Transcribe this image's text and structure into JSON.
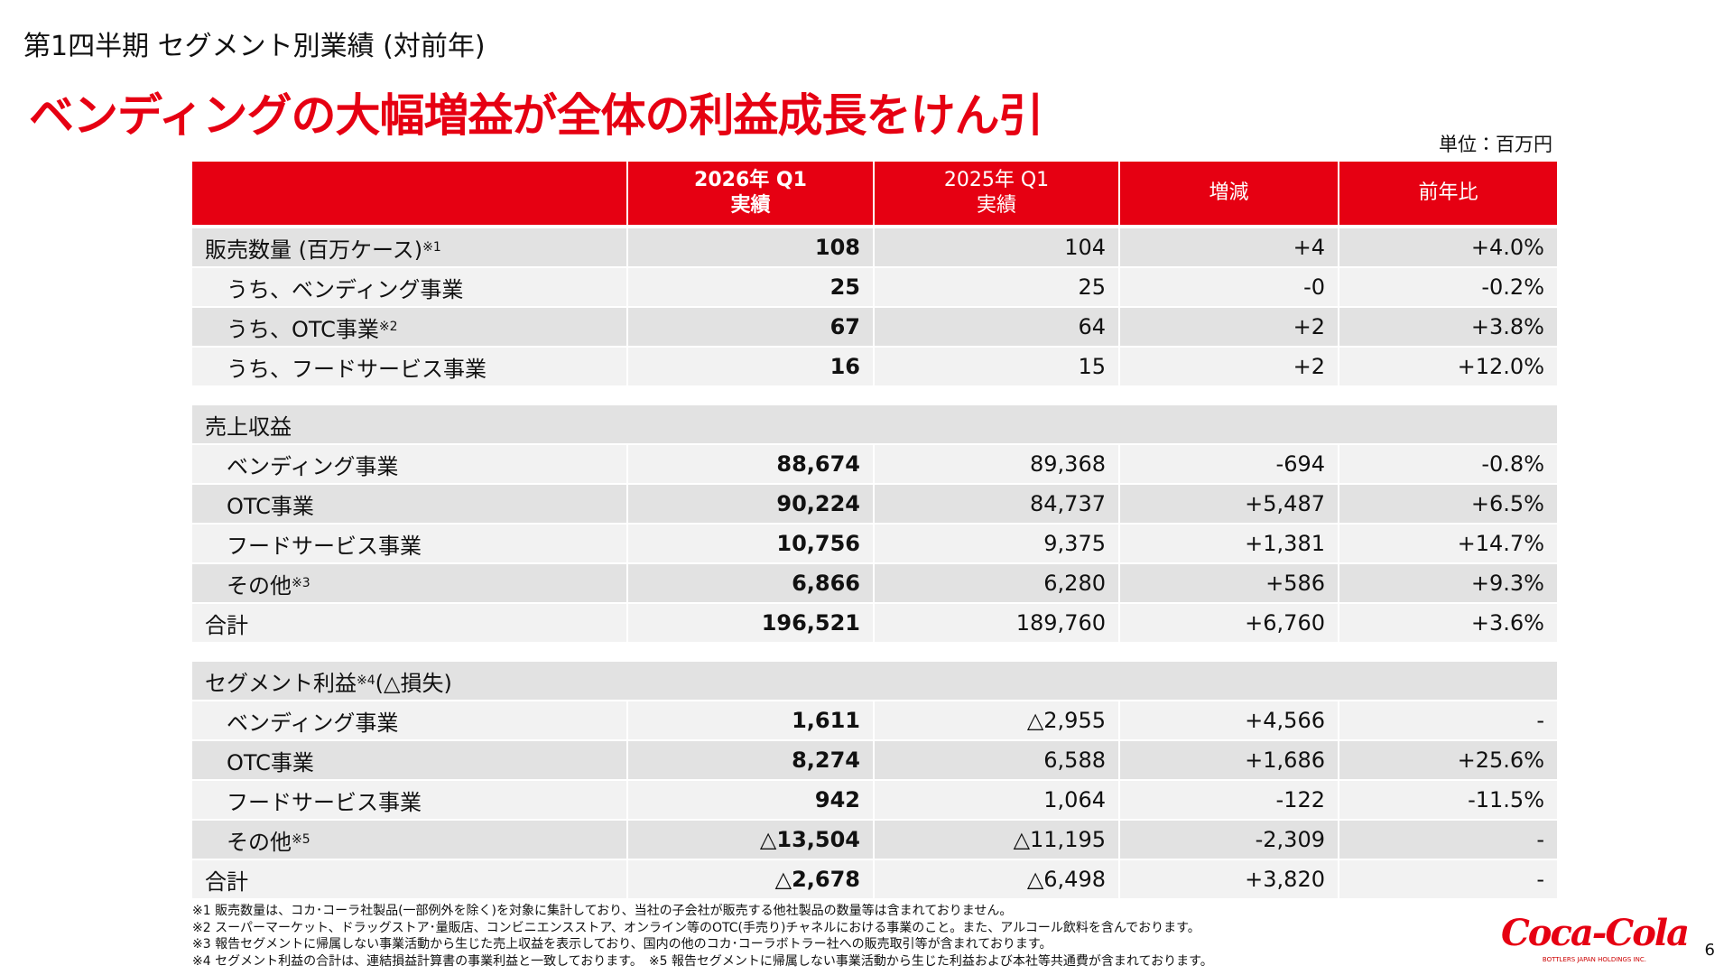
{
  "header": {
    "subtitle": "第1四半期 セグメント別業績 (対前年)",
    "title": "ベンディングの大幅増益が全体の利益成長をけん引",
    "unit": "単位：百万円"
  },
  "table": {
    "columns": [
      [
        "2026年 Q1",
        "実績"
      ],
      [
        "2025年 Q1",
        "実績"
      ],
      [
        "増減"
      ],
      [
        "前年比"
      ]
    ],
    "sections": [
      {
        "rows": [
          {
            "label": "販売数量 (百万ケース)",
            "note": "※1",
            "cells": [
              "108",
              "104",
              "+4",
              "+4.0%"
            ]
          },
          {
            "label": "うち、ベンディング事業",
            "indent": true,
            "cells": [
              "25",
              "25",
              "-0",
              "-0.2%"
            ]
          },
          {
            "label": "うち、OTC事業",
            "note": "※2",
            "indent": true,
            "cells": [
              "67",
              "64",
              "+2",
              "+3.8%"
            ]
          },
          {
            "label": "うち、フードサービス事業",
            "indent": true,
            "cells": [
              "16",
              "15",
              "+2",
              "+12.0%"
            ]
          }
        ]
      },
      {
        "heading": {
          "label": "売上収益"
        },
        "rows": [
          {
            "label": "ベンディング事業",
            "indent": true,
            "cells": [
              "88,674",
              "89,368",
              "-694",
              "-0.8%"
            ]
          },
          {
            "label": "OTC事業",
            "indent": true,
            "cells": [
              "90,224",
              "84,737",
              "+5,487",
              "+6.5%"
            ]
          },
          {
            "label": "フードサービス事業",
            "indent": true,
            "cells": [
              "10,756",
              "9,375",
              "+1,381",
              "+14.7%"
            ]
          },
          {
            "label": "その他",
            "note": "※3",
            "indent": true,
            "cells": [
              "6,866",
              "6,280",
              "+586",
              "+9.3%"
            ]
          },
          {
            "label": "合計",
            "cells": [
              "196,521",
              "189,760",
              "+6,760",
              "+3.6%"
            ]
          }
        ]
      },
      {
        "heading": {
          "label": "セグメント利益",
          "note": "※4",
          "suffix": " (△損失)"
        },
        "rows": [
          {
            "label": "ベンディング事業",
            "indent": true,
            "cells": [
              "1,611",
              "△2,955",
              "+4,566",
              "-"
            ]
          },
          {
            "label": "OTC事業",
            "indent": true,
            "cells": [
              "8,274",
              "6,588",
              "+1,686",
              "+25.6%"
            ]
          },
          {
            "label": "フードサービス事業",
            "indent": true,
            "cells": [
              "942",
              "1,064",
              "-122",
              "-11.5%"
            ]
          },
          {
            "label": "その他",
            "note": "※5",
            "indent": true,
            "cells": [
              "△13,504",
              "△11,195",
              "-2,309",
              "-"
            ]
          },
          {
            "label": "合計",
            "cells": [
              "△2,678",
              "△6,498",
              "+3,820",
              "-"
            ]
          }
        ]
      }
    ]
  },
  "footnotes": [
    "※1 販売数量は、コカ･コーラ社製品(一部例外を除く)を対象に集計しており、当社の子会社が販売する他社製品の数量等は含まれておりません。",
    "※2 スーパーマーケット、ドラッグストア･量販店、コンビニエンスストア、オンライン等のOTC(手売り)チャネルにおける事業のこと。また、アルコール飲料を含んでおります。",
    "※3 報告セグメントに帰属しない事業活動から生じた売上収益を表示しており、国内の他のコカ･コーラボトラー社への販売取引等が含まれております。",
    "※4 セグメント利益の合計は、連結損益計算書の事業利益と一致しております。　※5 報告セグメントに帰属しない事業活動から生じた利益および本社等共通費が含まれております。"
  ],
  "logo": {
    "name": "Coca-Cola",
    "company": "BOTTLERS JAPAN HOLDINGS INC."
  },
  "page_number": "6"
}
